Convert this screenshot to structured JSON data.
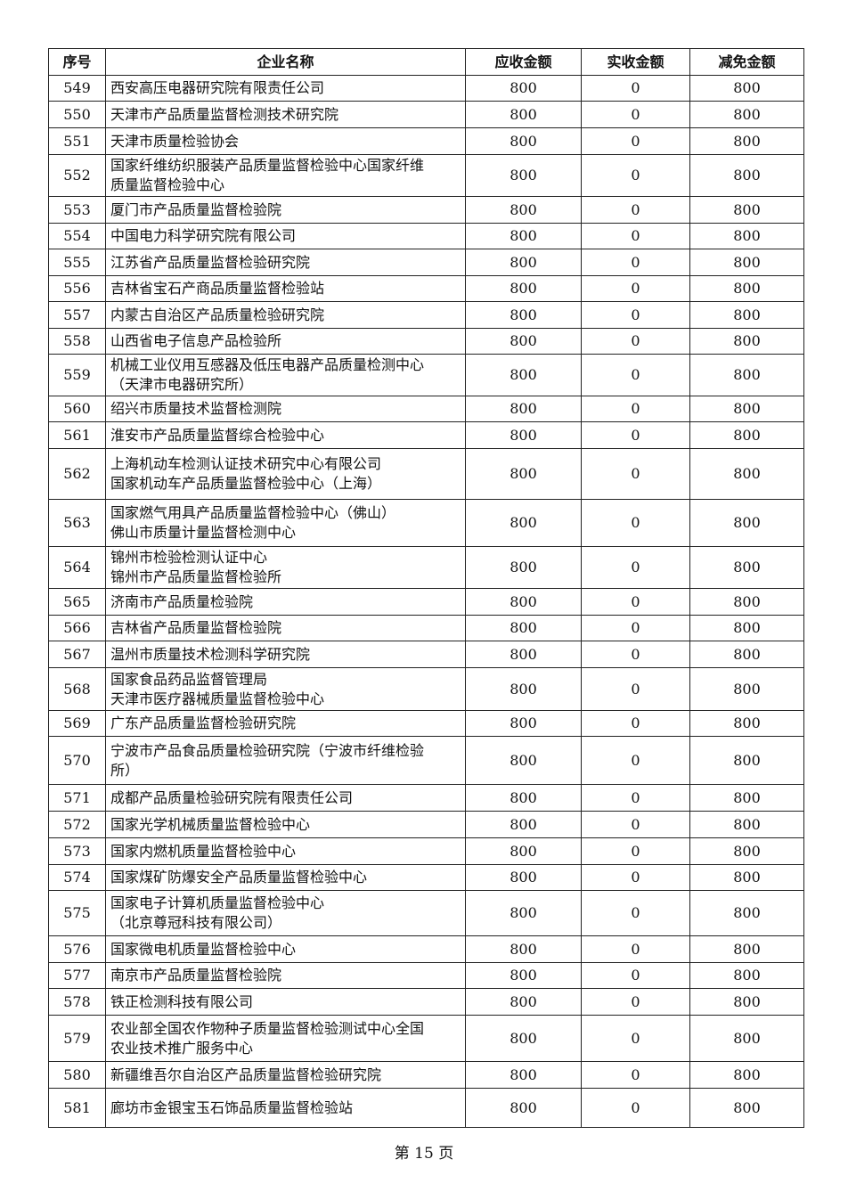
{
  "table": {
    "headers": [
      "序号",
      "企业名称",
      "应收金额",
      "实收金额",
      "减免金额"
    ],
    "rows": [
      [
        "549",
        "西安高压电器研究院有限责任公司",
        "800",
        "0",
        "800"
      ],
      [
        "550",
        "天津市产品质量监督检测技术研究院",
        "800",
        "0",
        "800"
      ],
      [
        "551",
        "天津市质量检验协会",
        "800",
        "0",
        "800"
      ],
      [
        "552",
        "国家纤维纺织服装产品质量监督检验中心国家纤维\n质量监督检验中心",
        "800",
        "0",
        "800"
      ],
      [
        "553",
        "厦门市产品质量监督检验院",
        "800",
        "0",
        "800"
      ],
      [
        "554",
        "中国电力科学研究院有限公司",
        "800",
        "0",
        "800"
      ],
      [
        "555",
        "江苏省产品质量监督检验研究院",
        "800",
        "0",
        "800"
      ],
      [
        "556",
        "吉林省宝石产商品质量监督检验站",
        "800",
        "0",
        "800"
      ],
      [
        "557",
        "内蒙古自治区产品质量检验研究院",
        "800",
        "0",
        "800"
      ],
      [
        "558",
        "山西省电子信息产品检验所",
        "800",
        "0",
        "800"
      ],
      [
        "559",
        "机械工业仪用互感器及低压电器产品质量检测中心\n（天津市电器研究所）",
        "800",
        "0",
        "800"
      ],
      [
        "560",
        "绍兴市质量技术监督检测院",
        "800",
        "0",
        "800"
      ],
      [
        "561",
        "淮安市产品质量监督综合检验中心",
        "800",
        "0",
        "800"
      ],
      [
        "562",
        "上海机动车检测认证技术研究中心有限公司\n国家机动车产品质量监督检验中心（上海）",
        "800",
        "0",
        "800"
      ],
      [
        "563",
        "国家燃气用具产品质量监督检验中心（佛山）\n佛山市质量计量监督检测中心",
        "800",
        "0",
        "800"
      ],
      [
        "564",
        "锦州市检验检测认证中心\n锦州市产品质量监督检验所",
        "800",
        "0",
        "800"
      ],
      [
        "565",
        "济南市产品质量检验院",
        "800",
        "0",
        "800"
      ],
      [
        "566",
        "吉林省产品质量监督检验院",
        "800",
        "0",
        "800"
      ],
      [
        "567",
        "温州市质量技术检测科学研究院",
        "800",
        "0",
        "800"
      ],
      [
        "568",
        "国家食品药品监督管理局\n天津市医疗器械质量监督检验中心",
        "800",
        "0",
        "800"
      ],
      [
        "569",
        "广东产品质量监督检验研究院",
        "800",
        "0",
        "800"
      ],
      [
        "570",
        "宁波市产品食品质量检验研究院（宁波市纤维检验\n所）",
        "800",
        "0",
        "800"
      ],
      [
        "571",
        "成都产品质量检验研究院有限责任公司",
        "800",
        "0",
        "800"
      ],
      [
        "572",
        "国家光学机械质量监督检验中心",
        "800",
        "0",
        "800"
      ],
      [
        "573",
        "国家内燃机质量监督检验中心",
        "800",
        "0",
        "800"
      ],
      [
        "574",
        "国家煤矿防爆安全产品质量监督检验中心",
        "800",
        "0",
        "800"
      ],
      [
        "575",
        "国家电子计算机质量监督检验中心\n（北京尊冠科技有限公司）",
        "800",
        "0",
        "800"
      ],
      [
        "576",
        "国家微电机质量监督检验中心",
        "800",
        "0",
        "800"
      ],
      [
        "577",
        "南京市产品质量监督检验院",
        "800",
        "0",
        "800"
      ],
      [
        "578",
        "铁正检测科技有限公司",
        "800",
        "0",
        "800"
      ],
      [
        "579",
        "农业部全国农作物种子质量监督检验测试中心全国\n农业技术推广服务中心",
        "800",
        "0",
        "800"
      ],
      [
        "580",
        "新疆维吾尔自治区产品质量监督检验研究院",
        "800",
        "0",
        "800"
      ],
      [
        "581",
        "廊坊市金银宝玉石饰品质量监督检验站",
        "800",
        "0",
        "800"
      ]
    ]
  },
  "footer": {
    "page_label": "第 15 页"
  }
}
